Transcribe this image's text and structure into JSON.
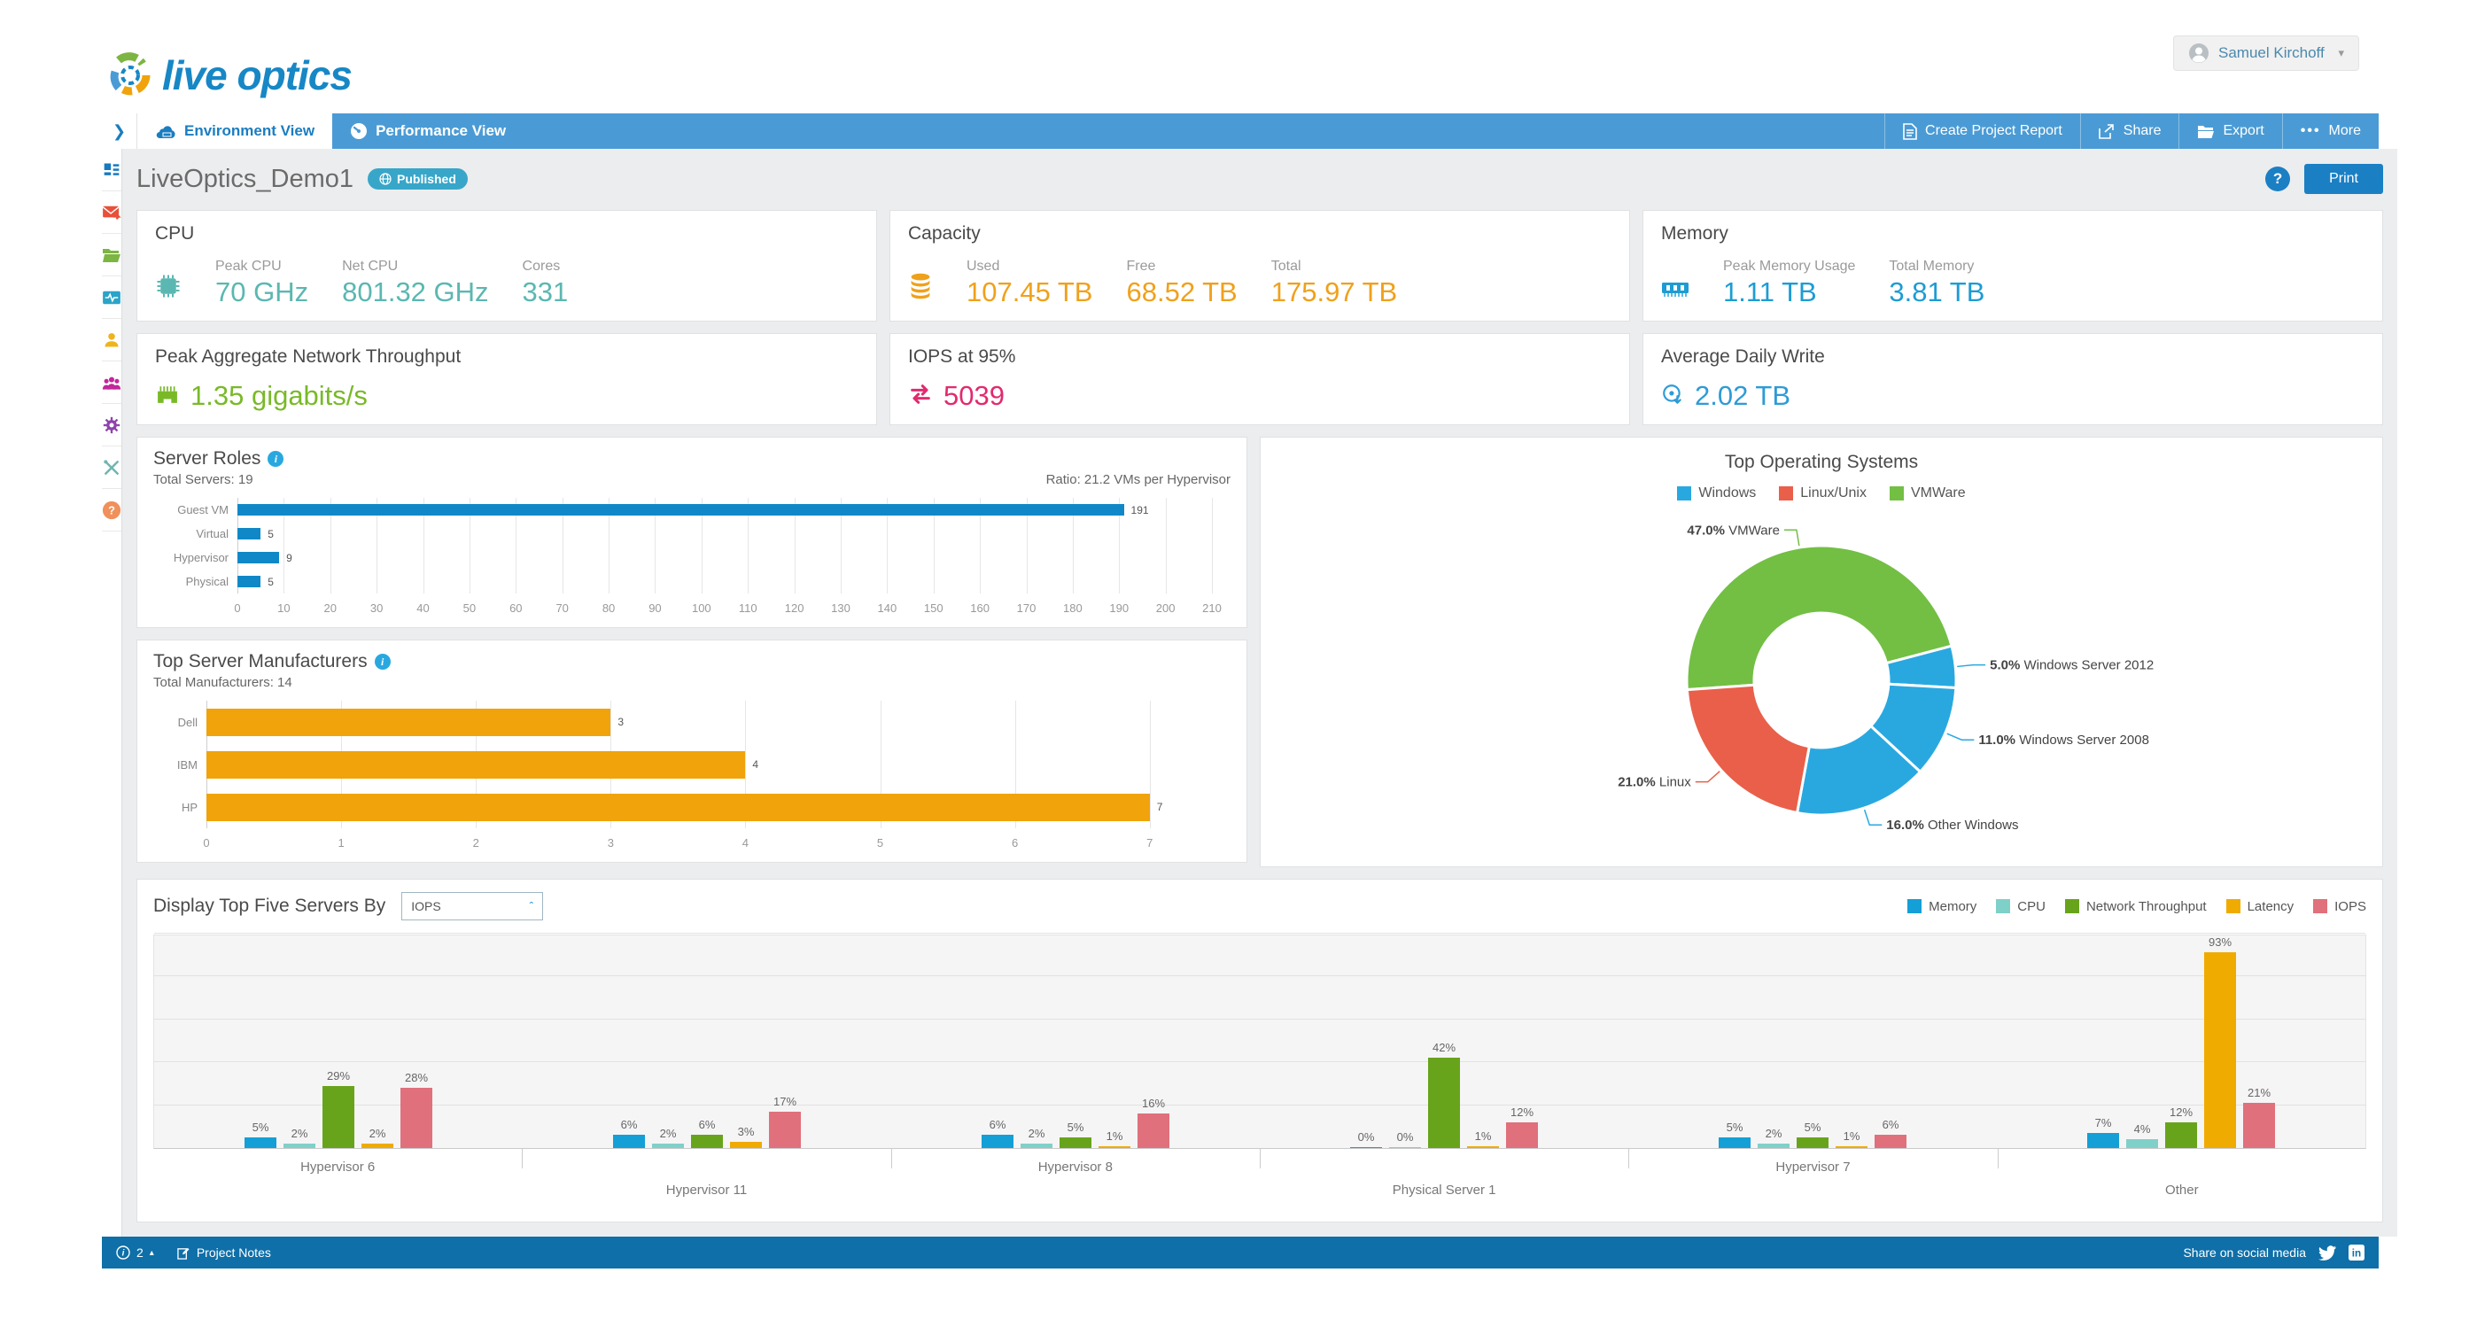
{
  "header": {
    "logo_text": "live optics",
    "user_name": "Samuel Kirchoff"
  },
  "tab_bar": {
    "tabs": [
      {
        "label": "Environment View"
      },
      {
        "label": "Performance View"
      }
    ],
    "actions": {
      "create_report": "Create Project Report",
      "share": "Share",
      "export": "Export",
      "more": "More"
    }
  },
  "title_bar": {
    "project_name": "LiveOptics_Demo1",
    "badge": "Published",
    "help": "?",
    "print": "Print"
  },
  "summary_cards": {
    "cpu": {
      "title": "CPU",
      "accent": "#5bb7b1",
      "metrics": [
        {
          "label": "Peak CPU",
          "value": "70 GHz"
        },
        {
          "label": "Net CPU",
          "value": "801.32 GHz"
        },
        {
          "label": "Cores",
          "value": "331"
        }
      ]
    },
    "capacity": {
      "title": "Capacity",
      "accent": "#efa11c",
      "metrics": [
        {
          "label": "Used",
          "value": "107.45 TB"
        },
        {
          "label": "Free",
          "value": "68.52 TB"
        },
        {
          "label": "Total",
          "value": "175.97 TB"
        }
      ]
    },
    "memory": {
      "title": "Memory",
      "accent": "#1d9cd3",
      "metrics": [
        {
          "label": "Peak Memory Usage",
          "value": "1.11 TB"
        },
        {
          "label": "Total Memory",
          "value": "3.81 TB"
        }
      ]
    },
    "network": {
      "title": "Peak Aggregate Network Throughput",
      "accent": "#79b928",
      "value": "1.35 gigabits/s"
    },
    "iops": {
      "title": "IOPS at 95%",
      "accent": "#e22a6f",
      "value": "5039"
    },
    "daily_write": {
      "title": "Average Daily Write",
      "accent": "#2e9bd6",
      "value": "2.02 TB"
    }
  },
  "chart_data": [
    {
      "id": "server_roles",
      "type": "bar",
      "orientation": "horizontal",
      "title": "Server Roles",
      "subtitle_left": "Total Servers: 19",
      "subtitle_right": "Ratio: 21.2 VMs per Hypervisor",
      "categories": [
        "Guest VM",
        "Virtual",
        "Hypervisor",
        "Physical"
      ],
      "values": [
        191,
        5,
        9,
        5
      ],
      "bar_color": "#1088c8",
      "xlim": [
        0,
        214
      ],
      "xtick_step": 10,
      "xtick_max": 210,
      "grid": true
    },
    {
      "id": "top_server_manufacturers",
      "type": "bar",
      "orientation": "horizontal",
      "title": "Top Server Manufacturers",
      "subtitle_left": "Total Manufacturers: 14",
      "categories": [
        "Dell",
        "IBM",
        "HP"
      ],
      "values": [
        3,
        4,
        7
      ],
      "bar_color": "#f0a30a",
      "xlim": [
        0,
        7.6
      ],
      "xtick_step": 1,
      "xtick_max": 7,
      "grid": true
    },
    {
      "id": "top_operating_systems",
      "type": "pie",
      "donut": true,
      "title": "Top Operating Systems",
      "start_angle_deg": 266,
      "legend": [
        {
          "label": "Windows",
          "color": "#29a8e0"
        },
        {
          "label": "Linux/Unix",
          "color": "#e95f4a"
        },
        {
          "label": "VMWare",
          "color": "#72bf44"
        }
      ],
      "slices": [
        {
          "label": "VMWare",
          "value": 47.0,
          "color": "#72bf44"
        },
        {
          "label": "Windows Server 2012",
          "value": 5.0,
          "color": "#29a8e0"
        },
        {
          "label": "Windows Server 2008",
          "value": 11.0,
          "color": "#29a8e0"
        },
        {
          "label": "Other Windows",
          "value": 16.0,
          "color": "#29a8e0"
        },
        {
          "label": "Linux",
          "value": 21.0,
          "color": "#e95f4a"
        }
      ]
    },
    {
      "id": "top_five_servers",
      "type": "bar",
      "grouped": true,
      "title": "Display Top Five Servers By",
      "selector_value": "IOPS",
      "ylim": [
        0,
        100
      ],
      "grid_step": 20,
      "value_suffix": "%",
      "legend_position": "top-right",
      "categories": [
        "Hypervisor 6",
        "Hypervisor 11",
        "Hypervisor 8",
        "Physical Server 1",
        "Hypervisor 7",
        "Other"
      ],
      "series": [
        {
          "name": "Memory",
          "color": "#149fd6",
          "values": [
            5,
            6,
            6,
            0,
            5,
            7
          ]
        },
        {
          "name": "CPU",
          "color": "#7fd0c9",
          "values": [
            2,
            2,
            2,
            0,
            2,
            4
          ]
        },
        {
          "name": "Network Throughput",
          "color": "#68a41b",
          "values": [
            29,
            6,
            5,
            42,
            5,
            12
          ]
        },
        {
          "name": "Latency",
          "color": "#f0ab00",
          "values": [
            2,
            3,
            1,
            1,
            1,
            93
          ]
        },
        {
          "name": "IOPS",
          "color": "#e0707c",
          "values": [
            28,
            17,
            16,
            12,
            6,
            21
          ]
        }
      ]
    }
  ],
  "footer": {
    "notes_count": "2",
    "project_notes": "Project Notes",
    "share_text": "Share on social media"
  }
}
